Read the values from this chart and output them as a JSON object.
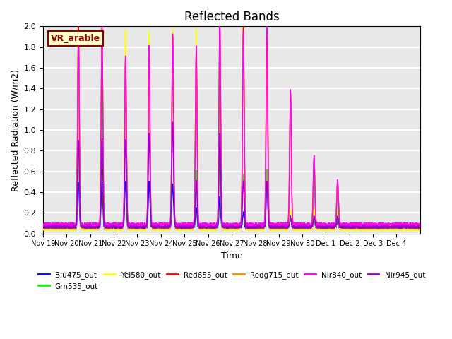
{
  "title": "Reflected Bands",
  "ylabel": "Reflected Radiation (W/m2)",
  "xlabel": "Time",
  "annotation": "VR_arable",
  "ylim": [
    0,
    2.0
  ],
  "background_color": "#e8e8e8",
  "grid_color": "white",
  "series": [
    {
      "name": "Blu475_out",
      "color": "#0000ff"
    },
    {
      "name": "Grn535_out",
      "color": "#00ff00"
    },
    {
      "name": "Yel580_out",
      "color": "#ffff00"
    },
    {
      "name": "Red655_out",
      "color": "#ff0000"
    },
    {
      "name": "Redg715_out",
      "color": "#ff8800"
    },
    {
      "name": "Nir840_out",
      "color": "#ff00ff"
    },
    {
      "name": "Nir945_out",
      "color": "#9900cc"
    }
  ],
  "x_ticks": [
    "Nov 19",
    "Nov 20",
    "Nov 21",
    "Nov 22",
    "Nov 23",
    "Nov 24",
    "Nov 25",
    "Nov 26",
    "Nov 27",
    "Nov 28",
    "Nov 29",
    "Nov 30",
    "Dec 1",
    "Dec 2",
    "Dec 3",
    "Dec 4"
  ],
  "n_days": 16,
  "base_noises": {
    "Blu475_out": 0.04,
    "Grn535_out": 0.05,
    "Yel580_out": 0.03,
    "Red655_out": 0.05,
    "Redg715_out": 0.06,
    "Nir840_out": 0.07,
    "Nir945_out": 0.05
  },
  "peak_heights": {
    "Blu475_out": [
      0.45,
      0.45,
      0.45,
      0.45,
      0.43,
      0.2,
      0.3,
      0.15,
      0.42,
      0.1,
      0.08,
      0.08
    ],
    "Grn535_out": [
      0.8,
      1.4,
      1.4,
      1.4,
      1.45,
      0.55,
      0.8,
      0.5,
      0.55,
      0.1,
      0.1,
      0.1
    ],
    "Yel580_out": [
      1.93,
      1.95,
      1.93,
      1.93,
      1.95,
      1.95,
      1.75,
      1.95,
      1.93,
      0.2,
      0.2,
      0.2
    ],
    "Red655_out": [
      1.95,
      1.9,
      1.62,
      1.65,
      1.85,
      1.68,
      1.97,
      1.97,
      1.93,
      1.3,
      0.65,
      0.43
    ],
    "Redg715_out": [
      1.78,
      1.91,
      1.63,
      1.73,
      1.84,
      1.68,
      1.85,
      1.85,
      1.97,
      1.3,
      0.65,
      0.43
    ],
    "Nir840_out": [
      1.79,
      1.91,
      1.63,
      1.73,
      1.85,
      1.74,
      1.98,
      1.85,
      1.97,
      1.31,
      0.66,
      0.43
    ],
    "Nir945_out": [
      0.85,
      0.85,
      0.85,
      0.9,
      1.01,
      0.45,
      0.9,
      0.45,
      0.45,
      0.1,
      0.1,
      0.1
    ]
  }
}
